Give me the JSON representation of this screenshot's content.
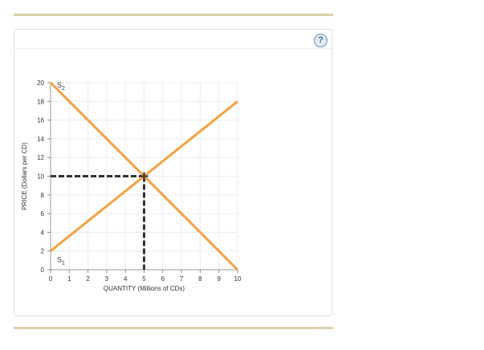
{
  "help_label": "?",
  "chart_data": {
    "type": "line",
    "xlabel": "QUANTITY (Millions of CDs)",
    "ylabel": "PRICE (Dollars per CD)",
    "xlim": [
      0,
      10
    ],
    "ylim": [
      0,
      20
    ],
    "xticks": [
      0,
      1,
      2,
      3,
      4,
      5,
      6,
      7,
      8,
      9,
      10
    ],
    "yticks": [
      0,
      2,
      4,
      6,
      8,
      10,
      12,
      14,
      16,
      18,
      20
    ],
    "grid": true,
    "series": [
      {
        "name": "S1",
        "label_main": "S",
        "label_sub": "1",
        "points": [
          [
            0,
            2
          ],
          [
            10,
            18
          ]
        ],
        "color": "#f5a142"
      },
      {
        "name": "S2",
        "label_main": "S",
        "label_sub": "2",
        "points": [
          [
            0,
            20
          ],
          [
            10,
            0
          ]
        ],
        "color": "#f5a142"
      }
    ],
    "equilibrium": {
      "x": 5,
      "y": 10,
      "color": "#333333"
    }
  }
}
